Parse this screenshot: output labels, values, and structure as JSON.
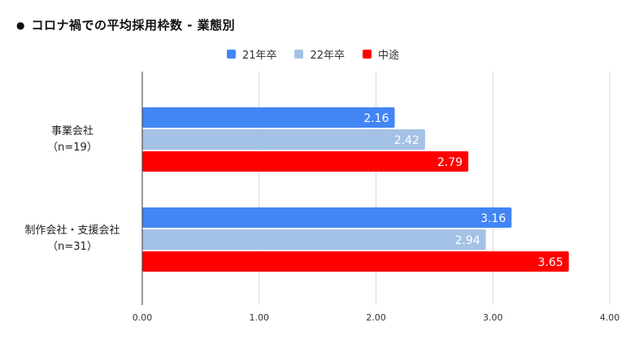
{
  "title": "コロナ禍での平均採用枠数 - 業態別",
  "title_bullet": "●",
  "chart_data": {
    "type": "bar",
    "orientation": "horizontal",
    "title": "コロナ禍での平均採用枠数 - 業態別",
    "categories": [
      {
        "line1": "事業会社",
        "line2": "（n=19）"
      },
      {
        "line1": "制作会社・支援会社",
        "line2": "（n=31）"
      }
    ],
    "series": [
      {
        "name": "21年卒",
        "color": "#4285f4",
        "values": [
          2.16,
          3.16
        ],
        "labels": [
          "2.16",
          "3.16"
        ]
      },
      {
        "name": "22年卒",
        "color": "#a4c2e5",
        "values": [
          2.42,
          2.94
        ],
        "labels": [
          "2.42",
          "2.94"
        ]
      },
      {
        "name": "中途",
        "color": "#ff0000",
        "values": [
          2.79,
          3.65
        ],
        "labels": [
          "2.79",
          "3.65"
        ]
      }
    ],
    "xlim": [
      0,
      4
    ],
    "xticks": [
      "0.00",
      "1.00",
      "2.00",
      "3.00",
      "4.00"
    ],
    "grid": true,
    "legend_position": "top"
  }
}
